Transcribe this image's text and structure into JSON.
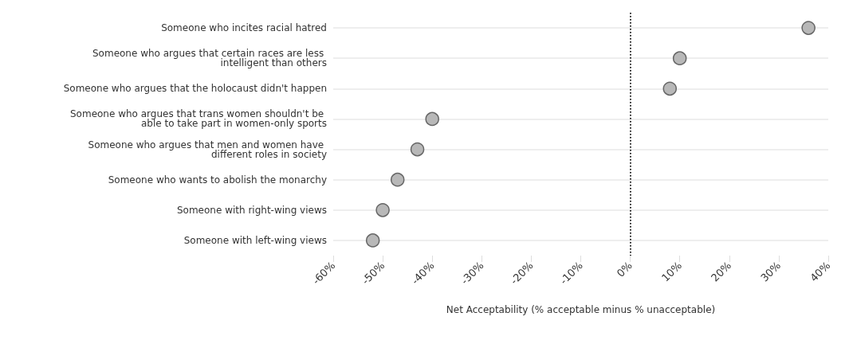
{
  "chart_data": {
    "type": "scatter",
    "orientation": "horizontal",
    "xlabel": "Net Acceptability (% acceptable minus % unacceptable)",
    "categories": [
      "Someone who incites racial hatred",
      "Someone who argues that certain races are less intelligent than others",
      "Someone who argues that the holocaust didn't happen",
      "Someone who argues that trans women shouldn't be able to take part in women-only sports",
      "Someone who argues that men and women have different roles in society",
      "Someone who wants to abolish the monarchy",
      "Someone with right-wing views",
      "Someone with left-wing views"
    ],
    "values": [
      36,
      10,
      8,
      -40,
      -43,
      -47,
      -50,
      -52
    ],
    "color": "#b8b8b8",
    "marker": "circle",
    "grid": "y",
    "xlim": [
      -60,
      40
    ],
    "xticks": [
      {
        "value": -60,
        "label": "-60%"
      },
      {
        "value": -50,
        "label": "-50%"
      },
      {
        "value": -40,
        "label": "-40%"
      },
      {
        "value": -30,
        "label": "-30%"
      },
      {
        "value": -20,
        "label": "-20%"
      },
      {
        "value": -10,
        "label": "-10%"
      },
      {
        "value": 0,
        "label": "0%"
      },
      {
        "value": 10,
        "label": "10%"
      },
      {
        "value": 20,
        "label": "20%"
      },
      {
        "value": 30,
        "label": "30%"
      },
      {
        "value": 40,
        "label": "40%"
      }
    ],
    "ref_lines": [
      {
        "axis": "x",
        "value": 0,
        "label": null,
        "color": "#222222",
        "line_style": "dotted"
      }
    ]
  }
}
